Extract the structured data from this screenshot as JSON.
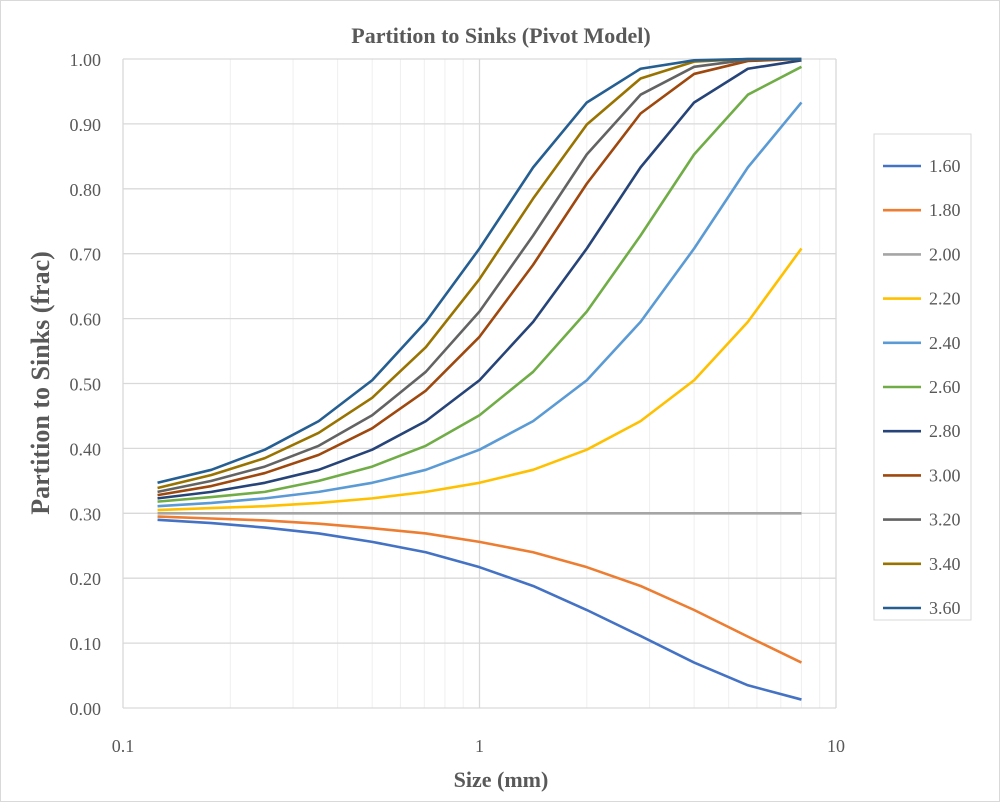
{
  "chart_data": {
    "type": "line",
    "title": "Partition to Sinks (Pivot Model)",
    "xlabel": "Size (mm)",
    "ylabel": "Partition to Sinks (frac)",
    "x_scale": "log",
    "xlim": [
      0.1,
      10
    ],
    "ylim": [
      0,
      1
    ],
    "x_ticks": [
      "0.1",
      "1",
      "10"
    ],
    "y_ticks": [
      "0.00",
      "0.10",
      "0.20",
      "0.30",
      "0.40",
      "0.50",
      "0.60",
      "0.70",
      "0.80",
      "0.90",
      "1.00"
    ],
    "grid": true,
    "legend_position": "right",
    "x": [
      0.125,
      0.177,
      0.25,
      0.354,
      0.5,
      0.707,
      1,
      1.414,
      2,
      2.83,
      4,
      5.66,
      8
    ],
    "series": [
      {
        "name": "1.60",
        "color": "#4472C4",
        "values": [
          0.29,
          0.285,
          0.278,
          0.269,
          0.256,
          0.24,
          0.217,
          0.188,
          0.151,
          0.111,
          0.07,
          0.035,
          0.013
        ]
      },
      {
        "name": "1.80",
        "color": "#ED7D31",
        "values": [
          0.295,
          0.292,
          0.289,
          0.284,
          0.277,
          0.269,
          0.256,
          0.24,
          0.217,
          0.188,
          0.151,
          0.11,
          0.07
        ]
      },
      {
        "name": "2.00",
        "color": "#A5A5A5",
        "values": [
          0.3,
          0.3,
          0.3,
          0.3,
          0.3,
          0.3,
          0.3,
          0.3,
          0.3,
          0.3,
          0.3,
          0.3,
          0.3
        ]
      },
      {
        "name": "2.20",
        "color": "#FFC000",
        "values": [
          0.305,
          0.308,
          0.311,
          0.316,
          0.323,
          0.333,
          0.347,
          0.367,
          0.398,
          0.442,
          0.505,
          0.595,
          0.708
        ]
      },
      {
        "name": "2.40",
        "color": "#5B9BD5",
        "values": [
          0.311,
          0.316,
          0.323,
          0.333,
          0.347,
          0.367,
          0.398,
          0.442,
          0.505,
          0.595,
          0.708,
          0.833,
          0.933
        ]
      },
      {
        "name": "2.60",
        "color": "#70AD47",
        "values": [
          0.318,
          0.325,
          0.333,
          0.35,
          0.372,
          0.404,
          0.451,
          0.518,
          0.611,
          0.728,
          0.853,
          0.945,
          0.988
        ]
      },
      {
        "name": "2.80",
        "color": "#264478",
        "values": [
          0.323,
          0.333,
          0.347,
          0.367,
          0.398,
          0.442,
          0.505,
          0.595,
          0.708,
          0.833,
          0.933,
          0.985,
          0.998
        ]
      },
      {
        "name": "3.00",
        "color": "#9E480E",
        "values": [
          0.328,
          0.342,
          0.362,
          0.39,
          0.431,
          0.489,
          0.572,
          0.683,
          0.808,
          0.916,
          0.977,
          0.997,
          1.0
        ]
      },
      {
        "name": "3.20",
        "color": "#636363",
        "values": [
          0.333,
          0.35,
          0.372,
          0.404,
          0.451,
          0.518,
          0.611,
          0.728,
          0.853,
          0.945,
          0.988,
          0.999,
          1.0
        ]
      },
      {
        "name": "3.40",
        "color": "#997300",
        "values": [
          0.339,
          0.359,
          0.385,
          0.424,
          0.478,
          0.556,
          0.661,
          0.785,
          0.899,
          0.97,
          0.996,
          1.0,
          1.0
        ]
      },
      {
        "name": "3.60",
        "color": "#255E91",
        "values": [
          0.347,
          0.367,
          0.398,
          0.442,
          0.505,
          0.595,
          0.708,
          0.833,
          0.933,
          0.985,
          0.998,
          1.0,
          1.0
        ]
      }
    ]
  }
}
